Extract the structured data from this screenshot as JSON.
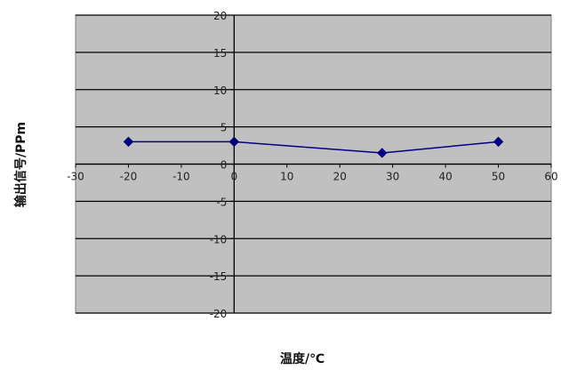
{
  "chart_data": {
    "type": "line",
    "title": "",
    "xlabel": "温度/℃",
    "ylabel": "输出信号/PPm",
    "xlim": [
      -30,
      60
    ],
    "ylim": [
      -20,
      20
    ],
    "x_ticks": [
      -30,
      -20,
      -10,
      0,
      10,
      20,
      30,
      40,
      50,
      60
    ],
    "y_ticks": [
      -20,
      -15,
      -10,
      -5,
      0,
      5,
      10,
      15,
      20
    ],
    "x_tick_labels": [
      "-30",
      "-20",
      "-10",
      "0",
      "10",
      "20",
      "30",
      "40",
      "50",
      "60"
    ],
    "y_tick_labels": [
      "-20",
      "-15",
      "-10",
      "-5",
      "0",
      "5",
      "10",
      "15",
      "20"
    ],
    "grid": "horizontal",
    "legend": "none",
    "series": [
      {
        "x": [
          -20,
          0,
          28,
          50
        ],
        "y": [
          3,
          3,
          1.5,
          3
        ]
      }
    ]
  },
  "colors": {
    "plot_background": "#c0c0c0",
    "gridline": "#000000",
    "series_line": "#000080",
    "marker": "#000080"
  }
}
